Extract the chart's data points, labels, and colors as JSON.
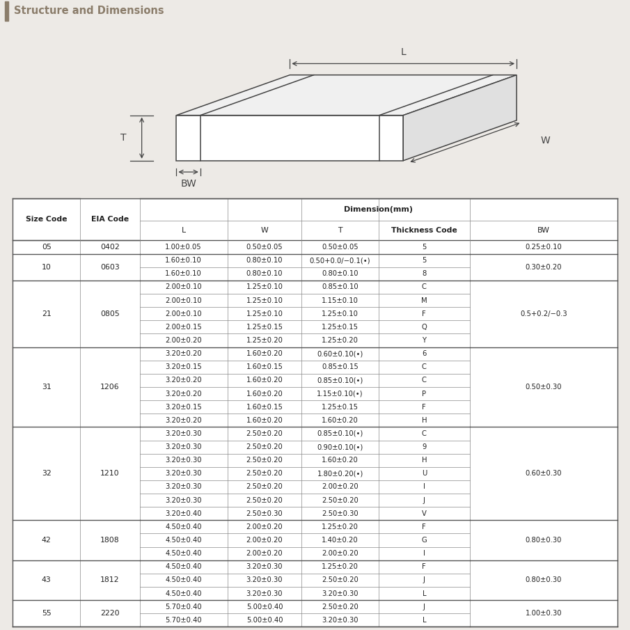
{
  "title": "Structure and Dimensions",
  "title_color": "#8B7D6B",
  "title_bar_color": "#8B7D6B",
  "bg_color": "#EDEAE6",
  "table_bg": "#FFFFFF",
  "rows": [
    [
      "05",
      "0402",
      "1.00±0.05",
      "0.50±0.05",
      "0.50±0.05",
      "5",
      "0.25±0.10"
    ],
    [
      "10",
      "0603",
      "1.60±0.10",
      "0.80±0.10",
      "0.50+0.0/−0.1(•)",
      "5",
      "0.30±0.20"
    ],
    [
      "",
      "",
      "1.60±0.10",
      "0.80±0.10",
      "0.80±0.10",
      "8",
      ""
    ],
    [
      "21",
      "0805",
      "2.00±0.10",
      "1.25±0.10",
      "0.85±0.10",
      "C",
      "0.5+0.2/−0.3"
    ],
    [
      "",
      "",
      "2.00±0.10",
      "1.25±0.10",
      "1.15±0.10",
      "M",
      ""
    ],
    [
      "",
      "",
      "2.00±0.10",
      "1.25±0.10",
      "1.25±0.10",
      "F",
      ""
    ],
    [
      "",
      "",
      "2.00±0.15",
      "1.25±0.15",
      "1.25±0.15",
      "Q",
      ""
    ],
    [
      "",
      "",
      "2.00±0.20",
      "1.25±0.20",
      "1.25±0.20",
      "Y",
      ""
    ],
    [
      "31",
      "1206",
      "3.20±0.20",
      "1.60±0.20",
      "0.60±0.10(•)",
      "6",
      "0.50±0.30"
    ],
    [
      "",
      "",
      "3.20±0.15",
      "1.60±0.15",
      "0.85±0.15",
      "C",
      ""
    ],
    [
      "",
      "",
      "3.20±0.20",
      "1.60±0.20",
      "0.85±0.10(•)",
      "C",
      ""
    ],
    [
      "",
      "",
      "3.20±0.20",
      "1.60±0.20",
      "1.15±0.10(•)",
      "P",
      ""
    ],
    [
      "",
      "",
      "3.20±0.15",
      "1.60±0.15",
      "1.25±0.15",
      "F",
      ""
    ],
    [
      "",
      "",
      "3.20±0.20",
      "1.60±0.20",
      "1.60±0.20",
      "H",
      ""
    ],
    [
      "32",
      "1210",
      "3.20±0.30",
      "2.50±0.20",
      "0.85±0.10(•)",
      "C",
      "0.60±0.30"
    ],
    [
      "",
      "",
      "3.20±0.30",
      "2.50±0.20",
      "0.90±0.10(•)",
      "9",
      ""
    ],
    [
      "",
      "",
      "3.20±0.30",
      "2.50±0.20",
      "1.60±0.20",
      "H",
      ""
    ],
    [
      "",
      "",
      "3.20±0.30",
      "2.50±0.20",
      "1.80±0.20(•)",
      "U",
      ""
    ],
    [
      "",
      "",
      "3.20±0.30",
      "2.50±0.20",
      "2.00±0.20",
      "I",
      ""
    ],
    [
      "",
      "",
      "3.20±0.30",
      "2.50±0.20",
      "2.50±0.20",
      "J",
      ""
    ],
    [
      "",
      "",
      "3.20±0.40",
      "2.50±0.30",
      "2.50±0.30",
      "V",
      ""
    ],
    [
      "42",
      "1808",
      "4.50±0.40",
      "2.00±0.20",
      "1.25±0.20",
      "F",
      "0.80±0.30"
    ],
    [
      "",
      "",
      "4.50±0.40",
      "2.00±0.20",
      "1.40±0.20",
      "G",
      ""
    ],
    [
      "",
      "",
      "4.50±0.40",
      "2.00±0.20",
      "2.00±0.20",
      "I",
      ""
    ],
    [
      "43",
      "1812",
      "4.50±0.40",
      "3.20±0.30",
      "1.25±0.20",
      "F",
      "0.80±0.30"
    ],
    [
      "",
      "",
      "4.50±0.40",
      "3.20±0.30",
      "2.50±0.20",
      "J",
      ""
    ],
    [
      "",
      "",
      "4.50±0.40",
      "3.20±0.30",
      "3.20±0.30",
      "L",
      ""
    ],
    [
      "55",
      "2220",
      "5.70±0.40",
      "5.00±0.40",
      "2.50±0.20",
      "J",
      "1.00±0.30"
    ],
    [
      "",
      "",
      "5.70±0.40",
      "5.00±0.40",
      "3.20±0.30",
      "L",
      ""
    ]
  ],
  "size_groups": [
    [
      "05",
      0,
      0
    ],
    [
      "10",
      1,
      2
    ],
    [
      "21",
      3,
      7
    ],
    [
      "31",
      8,
      13
    ],
    [
      "32",
      14,
      20
    ],
    [
      "42",
      21,
      23
    ],
    [
      "43",
      24,
      26
    ],
    [
      "55",
      27,
      28
    ]
  ],
  "eia_groups": [
    [
      "0402",
      0,
      0
    ],
    [
      "0603",
      1,
      2
    ],
    [
      "0805",
      3,
      7
    ],
    [
      "1206",
      8,
      13
    ],
    [
      "1210",
      14,
      20
    ],
    [
      "1808",
      21,
      23
    ],
    [
      "1812",
      24,
      26
    ],
    [
      "2220",
      27,
      28
    ]
  ],
  "bw_groups": [
    [
      "0.25±0.10",
      0,
      0
    ],
    [
      "0.30±0.20",
      1,
      2
    ],
    [
      "0.5+0.2/−0.3",
      3,
      7
    ],
    [
      "0.50±0.30",
      8,
      13
    ],
    [
      "0.60±0.30",
      14,
      20
    ],
    [
      "0.80±0.30",
      21,
      23
    ],
    [
      "0.80±0.30",
      24,
      26
    ],
    [
      "1.00±0.30",
      27,
      28
    ]
  ]
}
